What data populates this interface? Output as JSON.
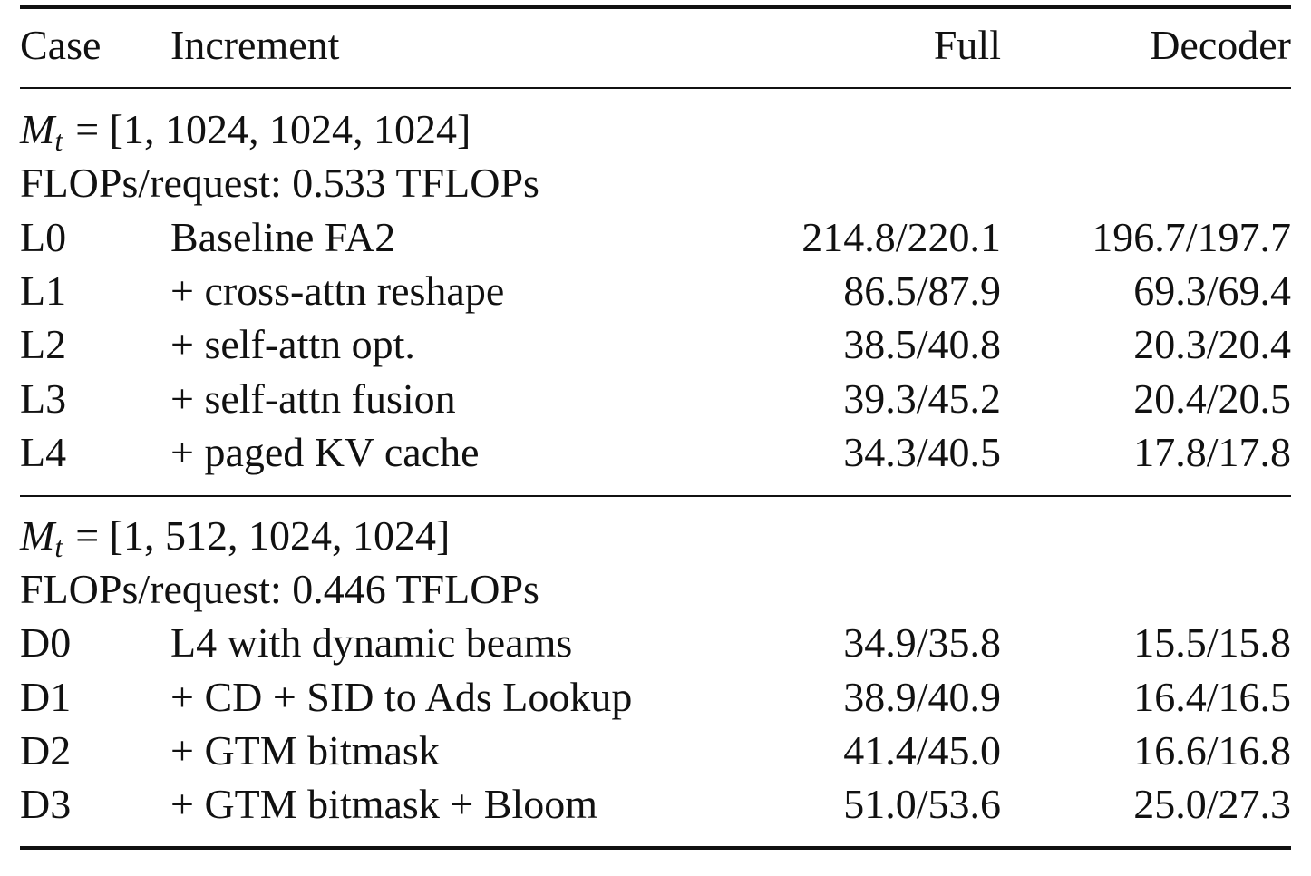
{
  "table": {
    "header": [
      "Case",
      "Increment",
      "Full",
      "Decoder"
    ],
    "sections": [
      {
        "label": {
          "symbol": "M",
          "subscript": "t",
          "expression": "= [1, 1024, 1024, 1024]"
        },
        "flops": "FLOPs/request: 0.533 TFLOPs",
        "rows": [
          [
            "L0",
            "Baseline FA2",
            "214.8/220.1",
            "196.7/197.7"
          ],
          [
            "L1",
            "+ cross-attn reshape",
            "86.5/87.9",
            "69.3/69.4"
          ],
          [
            "L2",
            "+ self-attn opt.",
            "38.5/40.8",
            "20.3/20.4"
          ],
          [
            "L3",
            "+ self-attn fusion",
            "39.3/45.2",
            "20.4/20.5"
          ],
          [
            "L4",
            "+ paged KV cache",
            "34.3/40.5",
            "17.8/17.8"
          ]
        ]
      },
      {
        "label": {
          "symbol": "M",
          "subscript": "t",
          "expression": "= [1, 512, 1024, 1024]"
        },
        "flops": "FLOPs/request: 0.446 TFLOPs",
        "rows": [
          [
            "D0",
            "L4 with dynamic beams",
            "34.9/35.8",
            "15.5/15.8"
          ],
          [
            "D1",
            "+ CD + SID to Ads Lookup",
            "38.9/40.9",
            "16.4/16.5"
          ],
          [
            "D2",
            "+ GTM bitmask",
            "41.4/45.0",
            "16.6/16.8"
          ],
          [
            "D3",
            "+ GTM bitmask + Bloom",
            "51.0/53.6",
            "25.0/27.3"
          ]
        ]
      }
    ]
  }
}
